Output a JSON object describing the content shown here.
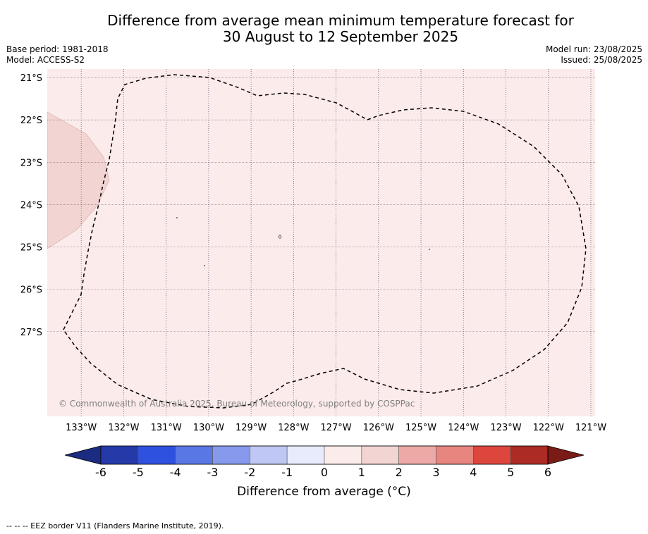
{
  "title_line1": "Difference from average mean minimum temperature forecast for",
  "title_line2": "30 August to 12 September 2025",
  "base_period": "Base period: 1981-2018",
  "model": "Model: ACCESS-S2",
  "model_run": "Model run: 23/08/2025",
  "issued": "Issued: 25/08/2025",
  "copyright": "© Commonwealth of Australia 2025, Bureau of Meteorology, supported by COSPPac",
  "footer": "--  --  -- EEZ border V11 (Flanders Marine Institute, 2019).",
  "map": {
    "lon_range": [
      -133.8,
      -120.9
    ],
    "lat_range": [
      -29.0,
      -20.8
    ],
    "lon_ticks": [
      "133°W",
      "132°W",
      "131°W",
      "130°W",
      "129°W",
      "128°W",
      "127°W",
      "126°W",
      "125°W",
      "124°W",
      "123°W",
      "122°W",
      "121°W"
    ],
    "lat_ticks": [
      "21°S",
      "22°S",
      "23°S",
      "24°S",
      "25°S",
      "26°S",
      "27°S"
    ],
    "background_color": "#fbebea",
    "warm_patch_color": "#f2d4d2"
  },
  "colorbar": {
    "label": "Difference from average (°C)",
    "tick_labels": [
      "-6",
      "-5",
      "-4",
      "-3",
      "-2",
      "-1",
      "0",
      "1",
      "2",
      "3",
      "4",
      "5",
      "6"
    ],
    "colors": [
      "#2539a9",
      "#2f51df",
      "#5a77e6",
      "#8699ec",
      "#bfc7f4",
      "#e8ebfb",
      "#fbebea",
      "#f2d4d2",
      "#eda9a5",
      "#e7857f",
      "#dc463d",
      "#ac2b24"
    ],
    "under_color": "#1b2b7f",
    "over_color": "#7b1b17"
  }
}
